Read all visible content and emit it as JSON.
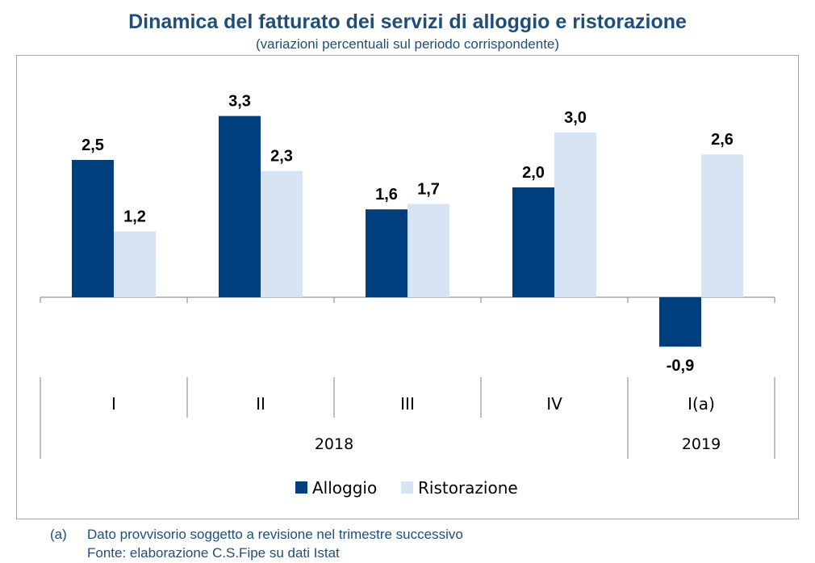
{
  "chart_data": {
    "type": "bar",
    "title": "Dinamica del fatturato dei servizi di alloggio e ristorazione",
    "subtitle": "(variazioni percentuali sul periodo corrispondente)",
    "categories": [
      "I",
      "II",
      "III",
      "IV",
      "I(a)"
    ],
    "groups": [
      {
        "label": "2018",
        "span": 4
      },
      {
        "label": "2019",
        "span": 1
      }
    ],
    "series": [
      {
        "name": "Alloggio",
        "color": "#003f7d",
        "values": [
          2.5,
          3.3,
          1.6,
          2.0,
          -0.9
        ]
      },
      {
        "name": "Ristorazione",
        "color": "#d6e4f3",
        "values": [
          1.2,
          2.3,
          1.7,
          3.0,
          2.6
        ]
      }
    ],
    "data_labels": [
      [
        "2,5",
        "3,3",
        "1,6",
        "2,0",
        "-0,9"
      ],
      [
        "1,2",
        "2,3",
        "1,7",
        "3,0",
        "2,6"
      ]
    ],
    "ylim": [
      -1.5,
      3.6
    ],
    "legend_position": "bottom"
  },
  "footnotes": {
    "marker": "(a)",
    "note": "Dato provvisorio soggetto a revisione nel trimestre successivo",
    "source": "Fonte: elaborazione C.S.Fipe su dati Istat"
  }
}
